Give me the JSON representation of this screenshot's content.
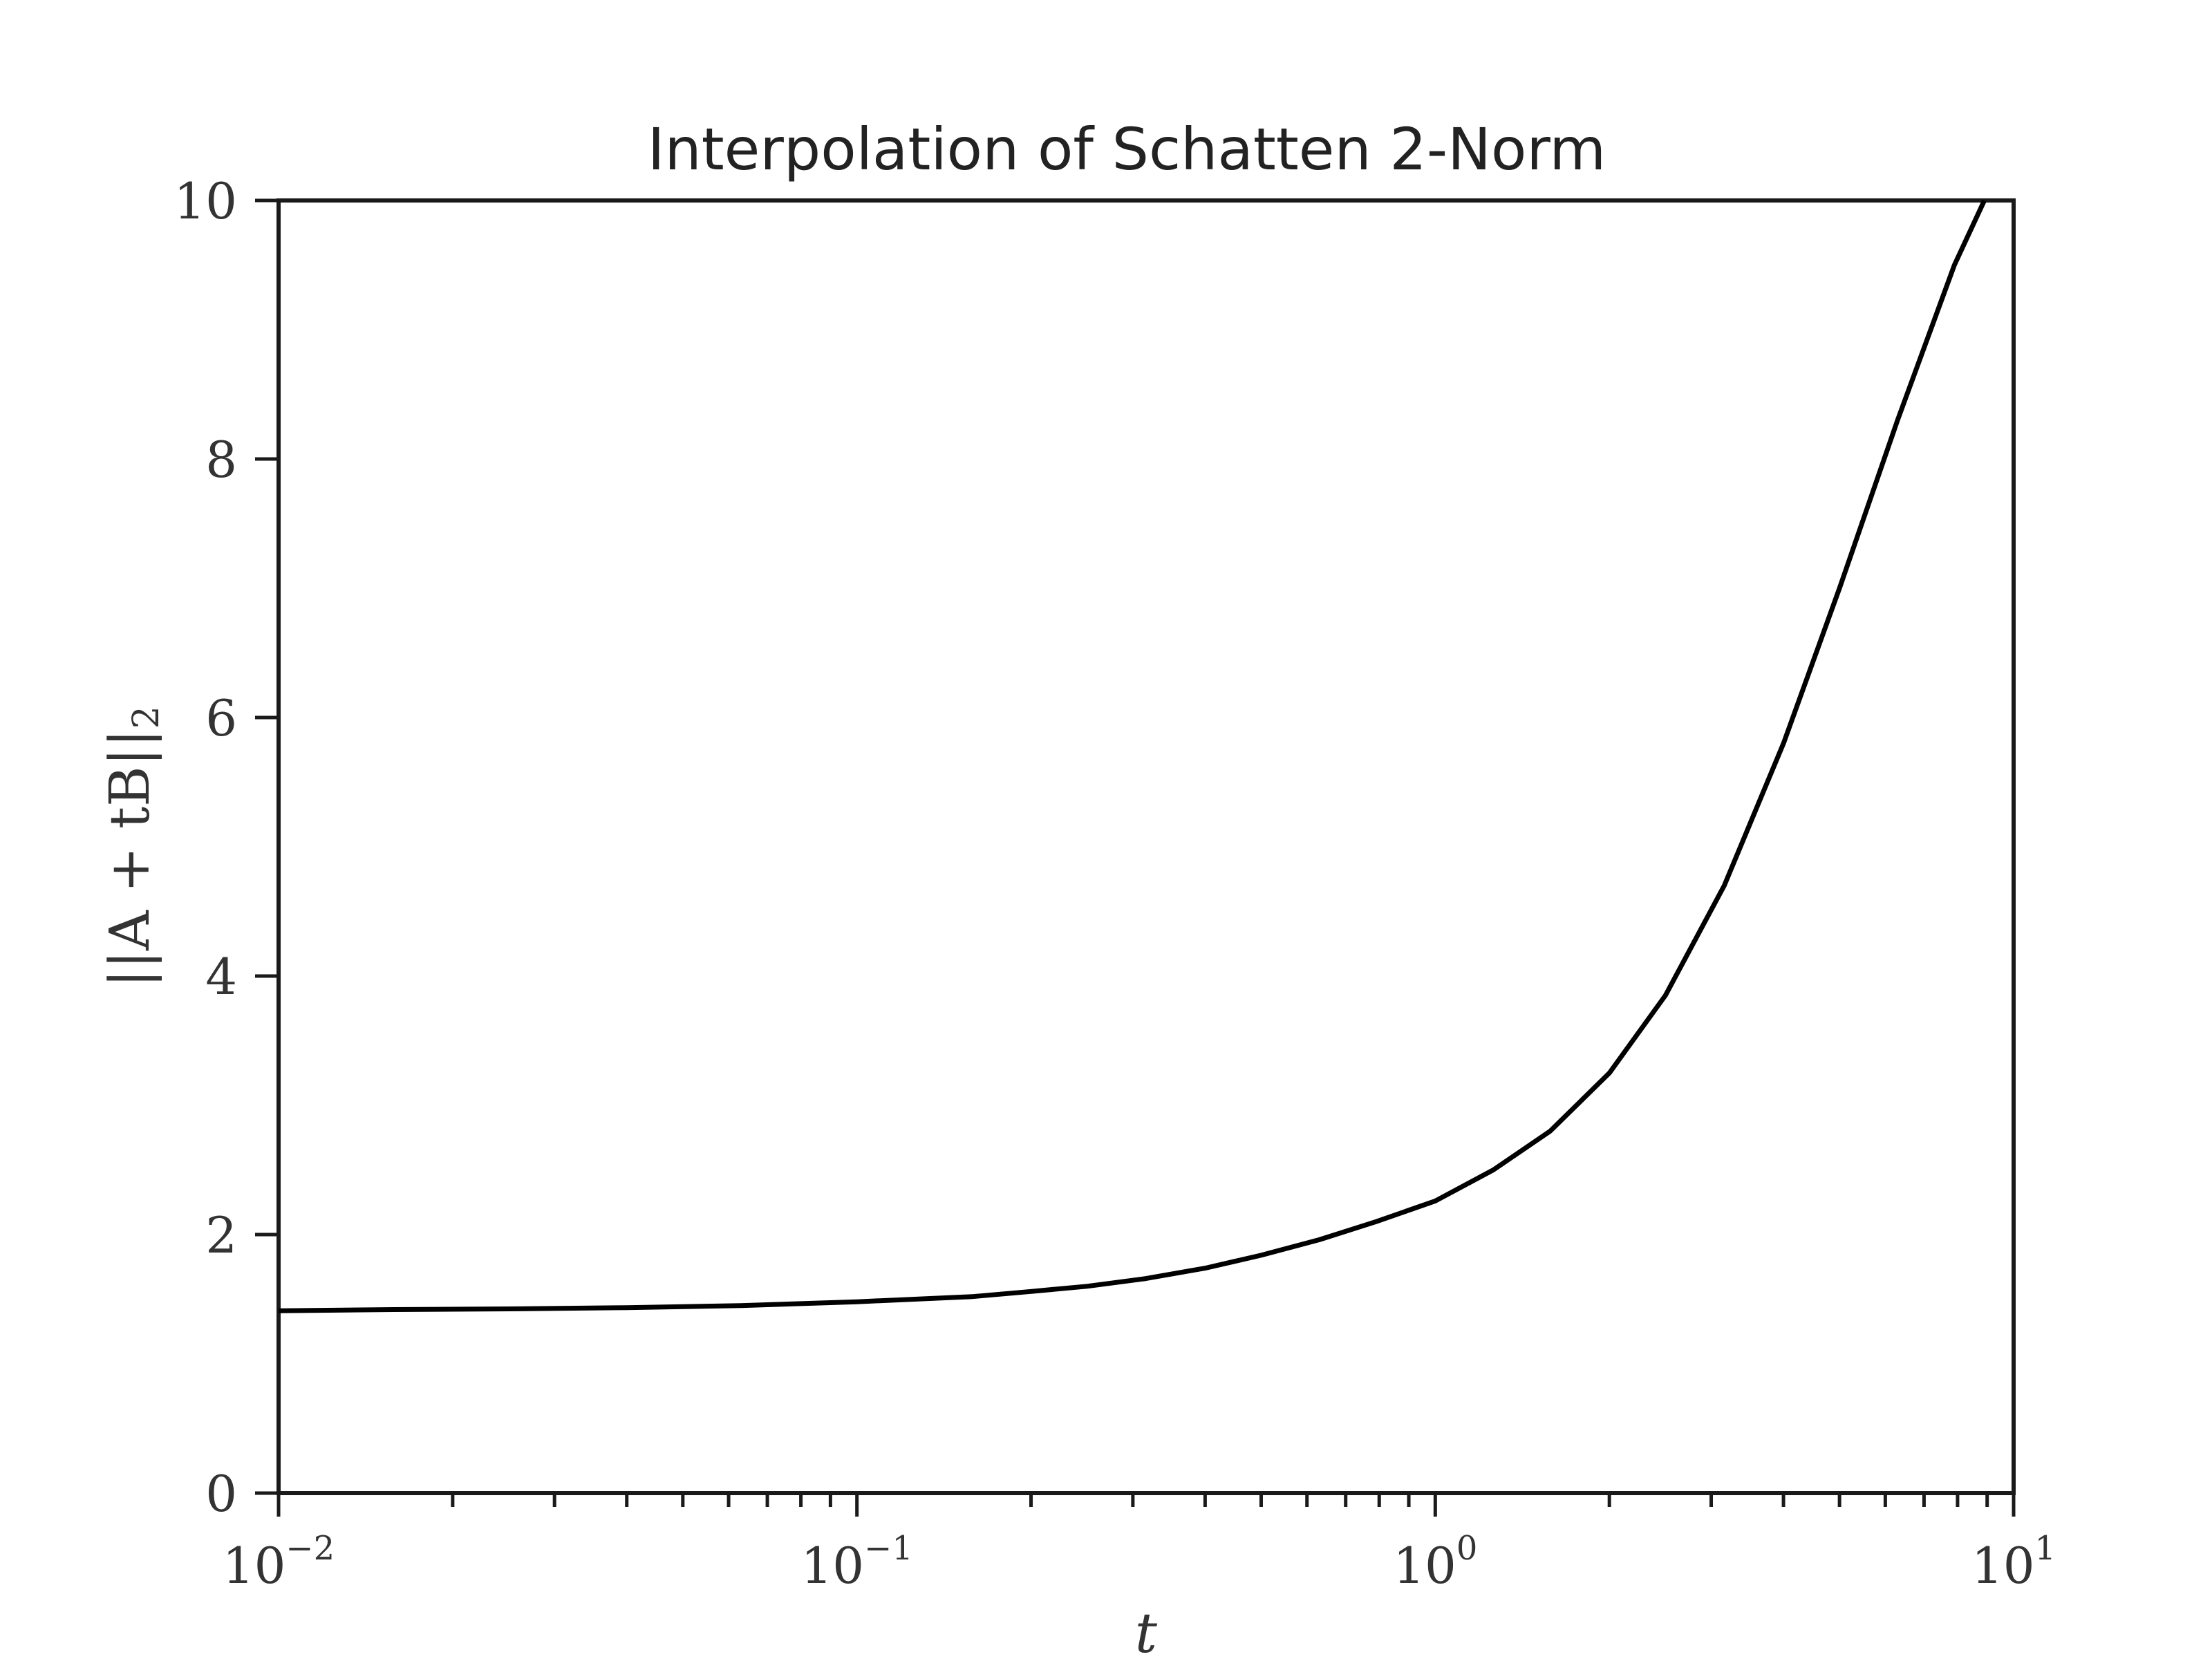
{
  "chart_data": {
    "type": "line",
    "title": "Interpolation of Schatten 2-Norm",
    "xlabel": "t",
    "ylabel": "||A + tB||",
    "ylabel_subscript": "2",
    "xscale": "log",
    "xlim": [
      0.01,
      10
    ],
    "ylim": [
      0,
      10
    ],
    "grid": false,
    "x_tick_labels": [
      {
        "base": "10",
        "exp": "−2"
      },
      {
        "base": "10",
        "exp": "−1"
      },
      {
        "base": "10",
        "exp": "0"
      },
      {
        "base": "10",
        "exp": "1"
      }
    ],
    "y_tick_labels": [
      "0",
      "2",
      "4",
      "6",
      "8",
      "10"
    ],
    "series": [
      {
        "x": [
          0.01,
          0.0158,
          0.025,
          0.04,
          0.063,
          0.1,
          0.158,
          0.2,
          0.25,
          0.316,
          0.4,
          0.5,
          0.63,
          0.79,
          1.0,
          1.26,
          1.58,
          2.0,
          2.5,
          3.16,
          4.0,
          5.0,
          6.3,
          7.9,
          8.9
        ],
        "y": [
          1.41,
          1.42,
          1.425,
          1.435,
          1.45,
          1.48,
          1.52,
          1.56,
          1.6,
          1.66,
          1.74,
          1.84,
          1.96,
          2.1,
          2.26,
          2.5,
          2.8,
          3.25,
          3.85,
          4.7,
          5.8,
          7.0,
          8.3,
          9.5,
          10.0
        ]
      }
    ],
    "colors": {
      "line": "#000000",
      "axes": "#1a1a1a",
      "text": "#333333"
    }
  }
}
